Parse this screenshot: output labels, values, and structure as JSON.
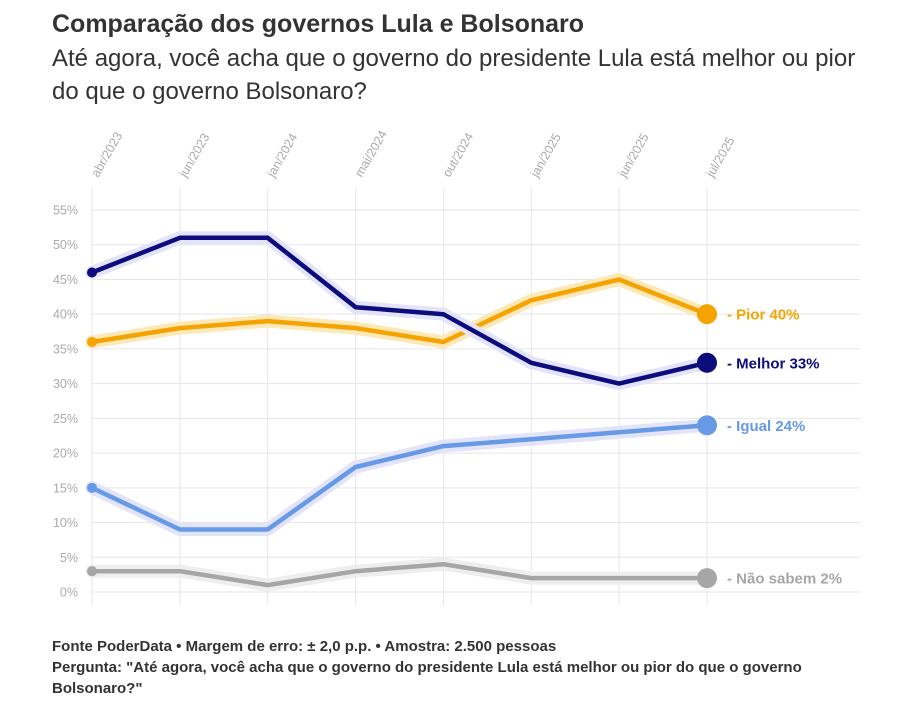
{
  "header": {
    "title": "Comparação dos governos Lula e Bolsonaro",
    "subtitle": "Até agora, você acha que o governo do presidente Lula está melhor ou pior do que o governo Bolsonaro?"
  },
  "footer": {
    "source": "Fonte PoderData • Margem de erro: ± 2,0 p.p. • Amostra: 2.500 pessoas",
    "question": "Pergunta: \"Até agora, você acha que o governo do presidente Lula está melhor ou pior do que o governo Bolsonaro?\""
  },
  "chart_data": {
    "type": "line",
    "x": [
      "abr/2023",
      "jun/2023",
      "jan/2024",
      "mai/2024",
      "out/2024",
      "jan/2025",
      "jun/2025",
      "jul/2025"
    ],
    "y_ticks": [
      "0%",
      "5%",
      "10%",
      "15%",
      "20%",
      "25%",
      "30%",
      "35%",
      "40%",
      "45%",
      "50%",
      "55%"
    ],
    "ylim": [
      0,
      55
    ],
    "grid": true,
    "series": [
      {
        "name": "Pior",
        "end_label": "- Pior 40%",
        "color": "#f5a300",
        "values": [
          36,
          38,
          39,
          38,
          36,
          42,
          45,
          40
        ]
      },
      {
        "name": "Melhor",
        "end_label": "- Melhor 33%",
        "color": "#0c0c7d",
        "values": [
          46,
          51,
          51,
          41,
          40,
          33,
          30,
          33
        ]
      },
      {
        "name": "Igual",
        "end_label": "- Igual 24%",
        "color": "#6699e6",
        "values": [
          15,
          9,
          9,
          18,
          21,
          22,
          23,
          24
        ]
      },
      {
        "name": "Não sabem",
        "end_label": "- Não sabem 2%",
        "color": "#a6a6a6",
        "values": [
          3,
          3,
          1,
          3,
          4,
          2,
          2,
          2
        ]
      }
    ]
  }
}
